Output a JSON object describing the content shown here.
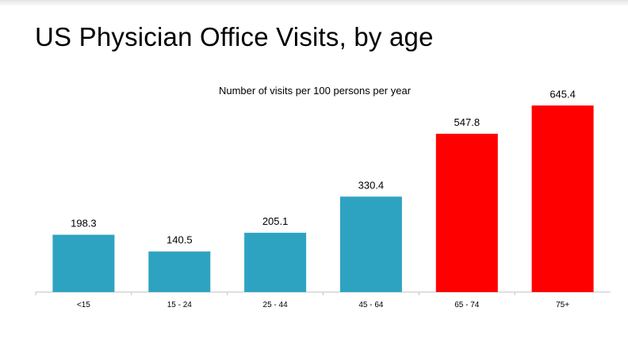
{
  "slide": {
    "title": "US Physician Office Visits, by age"
  },
  "chart_data": {
    "type": "bar",
    "title": "Number of visits per 100 persons per year",
    "xlabel": "",
    "ylabel": "",
    "categories": [
      "<15",
      "15 - 24",
      "25 - 44",
      "45 - 64",
      "65 - 74",
      "75+"
    ],
    "values": [
      198.3,
      140.5,
      205.1,
      330.4,
      547.8,
      645.4
    ],
    "data_labels": [
      "198.3",
      "140.5",
      "205.1",
      "330.4",
      "547.8",
      "645.4"
    ],
    "bar_colors": [
      "#2ea3c1",
      "#2ea3c1",
      "#2ea3c1",
      "#2ea3c1",
      "#ff0000",
      "#ff0000"
    ],
    "ylim": [
      0,
      660
    ],
    "grid": false,
    "legend": "none"
  }
}
